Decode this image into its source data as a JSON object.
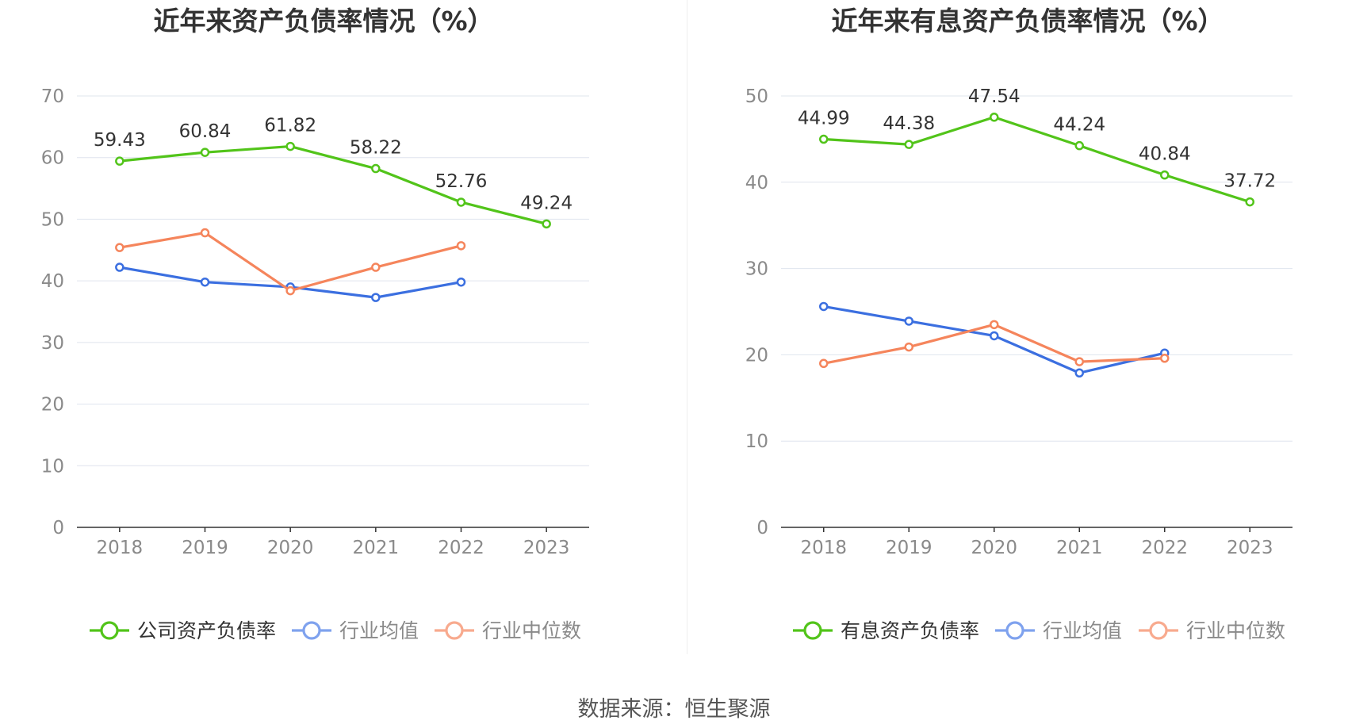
{
  "source": "数据来源：恒生聚源",
  "colors": {
    "company": "#52c41a",
    "average": "#3b6fe0",
    "median": "#f5855c",
    "average_legend": "#7fa2ee",
    "median_legend": "#f8aa8e",
    "grid": "#dfe4ee",
    "axis": "#333333",
    "tick_text": "#8a8a8a",
    "title": "#333333",
    "label": "#333333"
  },
  "chart_data": [
    {
      "type": "line",
      "title": "近年来资产负债率情况（%）",
      "categories": [
        "2018",
        "2019",
        "2020",
        "2021",
        "2022",
        "2023"
      ],
      "ylim": [
        0,
        70
      ],
      "yticks": [
        0,
        10,
        20,
        30,
        40,
        50,
        60,
        70
      ],
      "grid": true,
      "legend_position": "bottom",
      "series": [
        {
          "name": "公司资产负债率",
          "color_key": "company",
          "labeled": true,
          "values": [
            59.43,
            60.84,
            61.82,
            58.22,
            52.76,
            49.24
          ],
          "labels": [
            "59.43",
            "60.84",
            "61.82",
            "58.22",
            "52.76",
            "49.24"
          ]
        },
        {
          "name": "行业均值",
          "color_key": "average",
          "labeled": false,
          "values": [
            42.2,
            39.8,
            39.0,
            37.3,
            39.8,
            null
          ]
        },
        {
          "name": "行业中位数",
          "color_key": "median",
          "labeled": false,
          "values": [
            45.4,
            47.8,
            38.4,
            42.2,
            45.7,
            null
          ]
        }
      ]
    },
    {
      "type": "line",
      "title": "近年来有息资产负债率情况（%）",
      "categories": [
        "2018",
        "2019",
        "2020",
        "2021",
        "2022",
        "2023"
      ],
      "ylim": [
        0,
        50
      ],
      "yticks": [
        0,
        10,
        20,
        30,
        40,
        50
      ],
      "grid": true,
      "legend_position": "bottom",
      "series": [
        {
          "name": "有息资产负债率",
          "color_key": "company",
          "labeled": true,
          "values": [
            44.99,
            44.38,
            47.54,
            44.24,
            40.84,
            37.72
          ],
          "labels": [
            "44.99",
            "44.38",
            "47.54",
            "44.24",
            "40.84",
            "37.72"
          ]
        },
        {
          "name": "行业均值",
          "color_key": "average",
          "labeled": false,
          "values": [
            25.6,
            23.9,
            22.2,
            17.9,
            20.2,
            null
          ]
        },
        {
          "name": "行业中位数",
          "color_key": "median",
          "labeled": false,
          "values": [
            19.0,
            20.9,
            23.5,
            19.2,
            19.6,
            null
          ]
        }
      ]
    }
  ]
}
